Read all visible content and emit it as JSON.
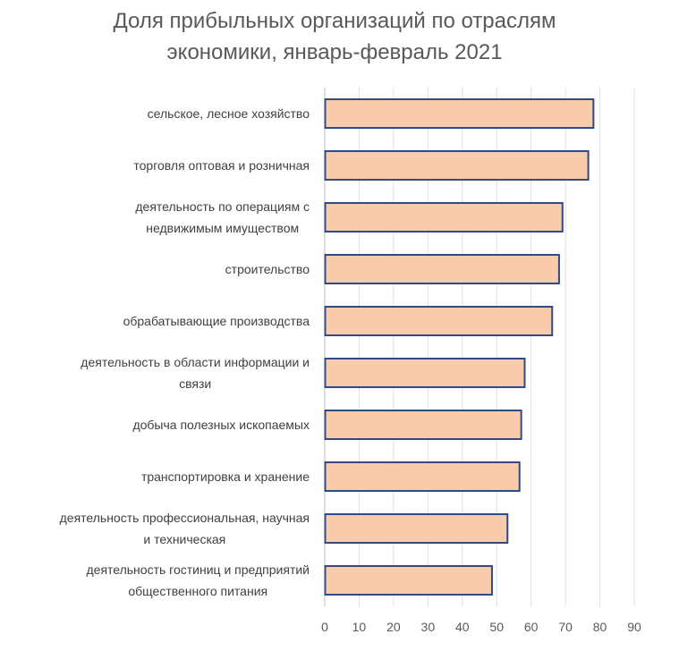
{
  "chart_data": {
    "type": "bar",
    "orientation": "horizontal",
    "title": "Доля прибыльных организаций по отраслям экономики, январь-февраль 2021",
    "title_lines": [
      "Доля прибыльных организаций по отраслям",
      "экономики, январь-февраль 2021"
    ],
    "categories": [
      "сельское, лесное хозяйство",
      "торговля оптовая и розничная",
      "деятельность по операциям с недвижимым имуществом",
      "строительство",
      "обрабатывающие производства",
      "деятельность в области информации и связи",
      "добыча полезных ископаемых",
      "транспортировка и хранение",
      "деятельность профессиональная, научная и техническая",
      "деятельность гостиниц и предприятий общественного питания"
    ],
    "category_lines": [
      [
        "сельское, лесное хозяйство"
      ],
      [
        "торговля оптовая и розничная"
      ],
      [
        "деятельность по операциям с",
        "недвижимым имуществом"
      ],
      [
        "строительство"
      ],
      [
        "обрабатывающие производства"
      ],
      [
        "деятельность в области информации и",
        "связи"
      ],
      [
        "добыча полезных ископаемых"
      ],
      [
        "транспортировка и хранение"
      ],
      [
        "деятельность профессиональная, научная",
        "и техническая"
      ],
      [
        "деятельность гостиниц и предприятий",
        "общественного питания"
      ]
    ],
    "values": [
      78,
      76.5,
      69,
      68,
      66,
      58,
      57,
      56.5,
      53,
      48.5
    ],
    "xlim": [
      0,
      90
    ],
    "xticks": [
      "0",
      "10",
      "20",
      "30",
      "40",
      "50",
      "60",
      "70",
      "80",
      "90"
    ],
    "xlabel": "",
    "ylabel": "",
    "grid": true,
    "legend": "none",
    "colors": {
      "bar_fill": "#f8cbad",
      "bar_stroke": "#2f4a85",
      "grid": "#e0e0e0",
      "text": "#404040",
      "title": "#595959"
    }
  }
}
